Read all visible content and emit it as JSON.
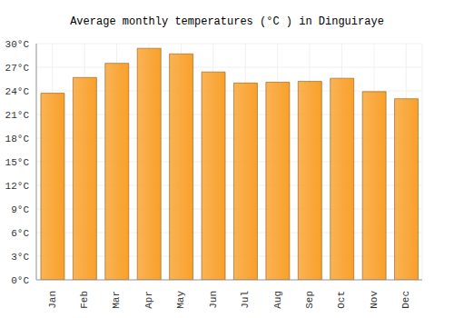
{
  "chart_data": {
    "type": "bar",
    "title": "Average monthly temperatures (°C ) in Dinguiraye",
    "categories": [
      "Jan",
      "Feb",
      "Mar",
      "Apr",
      "May",
      "Jun",
      "Jul",
      "Aug",
      "Sep",
      "Oct",
      "Nov",
      "Dec"
    ],
    "values": [
      23.7,
      25.7,
      27.5,
      29.4,
      28.7,
      26.4,
      25.0,
      25.1,
      25.2,
      25.6,
      23.9,
      23.0
    ],
    "color": "#f9a02a",
    "ylim": [
      0,
      30
    ],
    "yticks": [
      {
        "value": 0,
        "label": "0°C"
      },
      {
        "value": 3,
        "label": "3°C"
      },
      {
        "value": 6,
        "label": "6°C"
      },
      {
        "value": 9,
        "label": "9°C"
      },
      {
        "value": 12,
        "label": "12°C"
      },
      {
        "value": 15,
        "label": "15°C"
      },
      {
        "value": 18,
        "label": "18°C"
      },
      {
        "value": 21,
        "label": "21°C"
      },
      {
        "value": 24,
        "label": "24°C"
      },
      {
        "value": 27,
        "label": "27°C"
      },
      {
        "value": 30,
        "label": "30°C"
      }
    ],
    "grid": true
  }
}
